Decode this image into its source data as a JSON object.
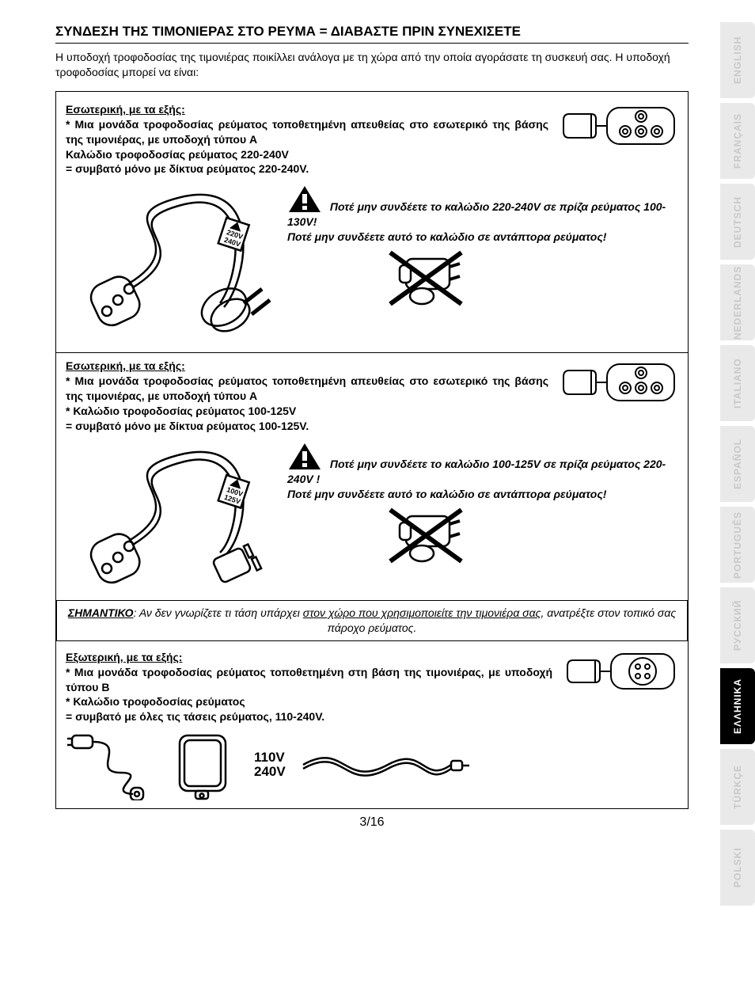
{
  "title": "ΣΥΝΔΕΣΗ ΤΗΣ ΤΙΜΟΝΙΕΡΑΣ ΣΤΟ ΡΕΥΜΑ = ΔΙΑΒΑΣΤΕ ΠΡΙΝ ΣΥΝΕΧΙΣΕΤΕ",
  "intro": "Η υποδοχή τροφοδοσίας της τιμονιέρας ποικίλλει ανάλογα με τη χώρα από την οποία αγοράσατε τη συσκευή σας. Η υποδοχή τροφοδοσίας μπορεί να είναι:",
  "section1": {
    "heading": "Εσωτερική, με τα εξής:",
    "body1": "* Μια μονάδα τροφοδοσίας ρεύματος τοποθετημένη απευθείας στο εσωτερικό της βάσης της τιμονιέρας, με υποδοχή τύπου A",
    "body2": "Καλώδιο τροφοδοσίας ρεύματος 220-240V",
    "body3": "= συμβατό μόνο με δίκτυα ρεύματος 220-240V.",
    "cable_label1": "220V",
    "cable_label2": "240V",
    "warn1": "Ποτέ μην συνδέετε το καλώδιο 220-240V σε πρίζα ρεύματος 100-130V!",
    "warn2": "Ποτέ μην συνδέετε αυτό το καλώδιο σε αντάπτορα ρεύματος!"
  },
  "section2": {
    "heading": "Εσωτερική, με τα εξής:",
    "body1": "* Μια μονάδα τροφοδοσίας ρεύματος τοποθετημένη απευθείας στο εσωτερικό της βάσης της τιμονιέρας, με υποδοχή τύπου A",
    "body2": "* Καλώδιο τροφοδοσίας ρεύματος 100-125V",
    "body3": "= συμβατό μόνο με δίκτυα ρεύματος 100-125V.",
    "cable_label1": "100V",
    "cable_label2": "125V",
    "warn1": "Ποτέ μην συνδέετε το καλώδιο 100-125V σε πρίζα ρεύματος 220-240V !",
    "warn2": "Ποτέ μην συνδέετε αυτό το καλώδιο σε αντάπτορα ρεύματος!"
  },
  "important": {
    "label": "ΣΗΜΑΝΤΙΚΟ",
    "text1": ": Αν δεν γνωρίζετε τι τάση υπάρχει ",
    "text1u": "στον χώρο που χρησιμοποιείτε την τιμονιέρα σας",
    "text2": ", ανατρέξτε στον τοπικό σας πάροχο ρεύματος."
  },
  "section3": {
    "heading": "Εξωτερική, με τα εξής:",
    "body1": "* Μια μονάδα τροφοδοσίας ρεύματος τοποθετημένη στη βάση της τιμονιέρας, με υποδοχή τύπου B",
    "body2": "* Καλώδιο τροφοδοσίας ρεύματος",
    "body3": "= συμβατό με όλες τις τάσεις ρεύματος, 110-240V.",
    "brick_label1": "110V",
    "brick_label2": "240V"
  },
  "page_number": "3/16",
  "languages": [
    {
      "label": "ENGLISH",
      "active": false
    },
    {
      "label": "FRANÇAIS",
      "active": false
    },
    {
      "label": "DEUTSCH",
      "active": false
    },
    {
      "label": "NEDERLANDS",
      "active": false
    },
    {
      "label": "ITALIANO",
      "active": false
    },
    {
      "label": "ESPAÑOL",
      "active": false
    },
    {
      "label": "PORTUGUÊS",
      "active": false
    },
    {
      "label": "РУССКИЙ",
      "active": false
    },
    {
      "label": "ΕΛΛΗΝΙΚΑ",
      "active": true
    },
    {
      "label": "TÜRKÇE",
      "active": false
    },
    {
      "label": "POLSKI",
      "active": false
    }
  ],
  "colors": {
    "tab_bg": "#e9e9e9",
    "tab_fg": "#c8c8c8",
    "active_bg": "#000000",
    "active_fg": "#ffffff",
    "stroke": "#000000"
  }
}
